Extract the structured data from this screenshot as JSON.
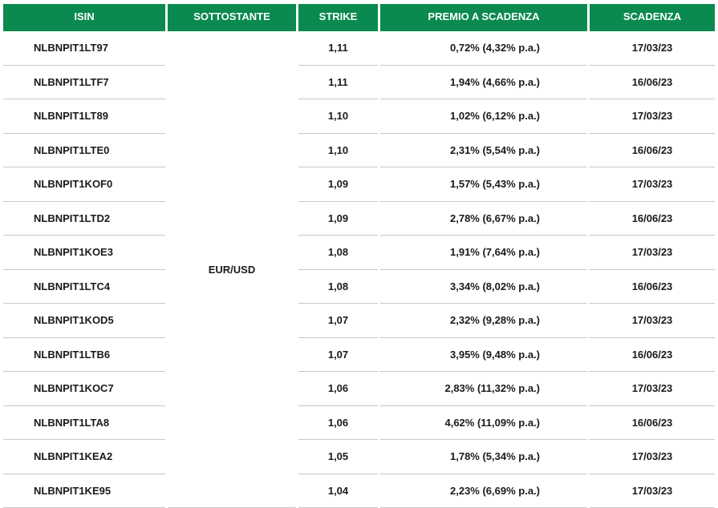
{
  "colors": {
    "header_bg": "#0a8a4f",
    "header_text": "#ffffff",
    "row_divider": "#c8c8c8"
  },
  "table": {
    "headers": [
      "ISIN",
      "SOTTOSTANTE",
      "STRIKE",
      "PREMIO A SCADENZA",
      "SCADENZA"
    ],
    "underlying": "EUR/USD",
    "rows": [
      {
        "isin": "NLBNPIT1LT97",
        "strike": "1,11",
        "premium": "0,72% (4,32% p.a.)",
        "expiry": "17/03/23"
      },
      {
        "isin": "NLBNPIT1LTF7",
        "strike": "1,11",
        "premium": "1,94% (4,66% p.a.)",
        "expiry": "16/06/23"
      },
      {
        "isin": "NLBNPIT1LT89",
        "strike": "1,10",
        "premium": "1,02% (6,12% p.a.)",
        "expiry": "17/03/23"
      },
      {
        "isin": "NLBNPIT1LTE0",
        "strike": "1,10",
        "premium": "2,31% (5,54% p.a.)",
        "expiry": "16/06/23"
      },
      {
        "isin": "NLBNPIT1KOF0",
        "strike": "1,09",
        "premium": "1,57% (5,43% p.a.)",
        "expiry": "17/03/23"
      },
      {
        "isin": "NLBNPIT1LTD2",
        "strike": "1,09",
        "premium": "2,78% (6,67% p.a.)",
        "expiry": "16/06/23"
      },
      {
        "isin": "NLBNPIT1KOE3",
        "strike": "1,08",
        "premium": "1,91% (7,64% p.a.)",
        "expiry": "17/03/23"
      },
      {
        "isin": "NLBNPIT1LTC4",
        "strike": "1,08",
        "premium": "3,34% (8,02% p.a.)",
        "expiry": "16/06/23"
      },
      {
        "isin": "NLBNPIT1KOD5",
        "strike": "1,07",
        "premium": "2,32% (9,28% p.a.)",
        "expiry": "17/03/23"
      },
      {
        "isin": "NLBNPIT1LTB6",
        "strike": "1,07",
        "premium": "3,95% (9,48% p.a.)",
        "expiry": "16/06/23"
      },
      {
        "isin": "NLBNPIT1KOC7",
        "strike": "1,06",
        "premium": "2,83% (11,32% p.a.)",
        "expiry": "17/03/23"
      },
      {
        "isin": "NLBNPIT1LTA8",
        "strike": "1,06",
        "premium": "4,62% (11,09% p.a.)",
        "expiry": "16/06/23"
      },
      {
        "isin": "NLBNPIT1KEA2",
        "strike": "1,05",
        "premium": "1,78% (5,34% p.a.)",
        "expiry": "17/03/23"
      },
      {
        "isin": "NLBNPIT1KE95",
        "strike": "1,04",
        "premium": "2,23% (6,69% p.a.)",
        "expiry": "17/03/23"
      }
    ]
  }
}
